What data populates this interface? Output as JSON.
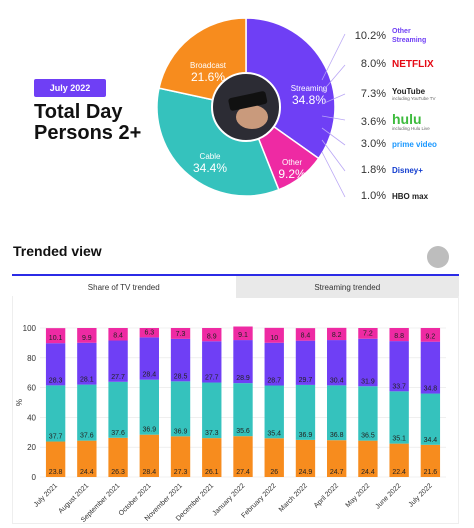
{
  "header": {
    "badge": "July 2022",
    "title_line1": "Total Day",
    "title_line2": "Persons 2+"
  },
  "pie": {
    "slices": [
      {
        "name": "Streaming",
        "value": 34.8,
        "value_label": "34.8%",
        "color": "#6f3ff5"
      },
      {
        "name": "Other",
        "value": 9.2,
        "value_label": "9.2%",
        "color": "#ee2aa3"
      },
      {
        "name": "Cable",
        "value": 34.4,
        "value_label": "34.4%",
        "color": "#35c2bd"
      },
      {
        "name": "Broadcast",
        "value": 21.6,
        "value_label": "21.6%",
        "color": "#f78c1e"
      }
    ]
  },
  "streaming_legend": [
    {
      "pct": "10.2%",
      "label": "Other Streaming",
      "icon": "other-streaming-logo",
      "color": "#6f3ff5"
    },
    {
      "pct": "8.0%",
      "label": "NETFLIX",
      "icon": "netflix-logo",
      "color": "#e50914"
    },
    {
      "pct": "7.3%",
      "label": "YouTube",
      "sublabel": "including YouTube TV",
      "icon": "youtube-logo",
      "color": "#222222"
    },
    {
      "pct": "3.6%",
      "label": "hulu",
      "sublabel": "including Hulu Live",
      "icon": "hulu-logo",
      "color": "#3dbb3d"
    },
    {
      "pct": "3.0%",
      "label": "prime video",
      "icon": "prime-video-logo",
      "color": "#1a98ff"
    },
    {
      "pct": "1.8%",
      "label": "Disney+",
      "icon": "disney-plus-logo",
      "color": "#113ccf"
    },
    {
      "pct": "1.0%",
      "label": "HBO max",
      "icon": "hbo-max-logo",
      "color": "#222222"
    }
  ],
  "trend": {
    "section_title": "Trended view",
    "tabs": [
      {
        "label": "Share of TV trended",
        "active": true
      },
      {
        "label": "Streaming trended",
        "active": false
      }
    ]
  },
  "chart_data": {
    "type": "bar",
    "stacked": true,
    "ylabel": "%",
    "ylim": [
      0,
      100
    ],
    "yticks": [
      0,
      20,
      40,
      60,
      80,
      100
    ],
    "categories": [
      "July 2021",
      "August 2021",
      "September 2021",
      "October 2021",
      "November 2021",
      "December 2021",
      "January 2022",
      "February 2022",
      "March 2022",
      "April 2022",
      "May 2022",
      "June 2022",
      "July 2022"
    ],
    "series": [
      {
        "key": "broadcast",
        "color": "#f78c1e",
        "values": [
          23.8,
          24.4,
          26.3,
          28.4,
          27.3,
          26.1,
          27.4,
          26,
          24.9,
          24.7,
          24.4,
          22.4,
          21.6
        ],
        "labels": [
          "23.8",
          "24.4",
          "26.3",
          "28.4",
          "27.3",
          "26.1",
          "27.4",
          "26",
          "24.9",
          "24.7",
          "24.4",
          "22.4",
          "21.6"
        ]
      },
      {
        "key": "cable",
        "color": "#35c2bd",
        "values": [
          37.7,
          37.6,
          37.6,
          36.9,
          36.9,
          37.3,
          35.6,
          35.4,
          36.9,
          36.8,
          36.5,
          35.1,
          34.4
        ],
        "labels": [
          "37.7",
          "37.6",
          "37.6",
          "36.9",
          "36.9",
          "37.3",
          "35.6",
          "35.4",
          "36.9",
          "36.8",
          "36.5",
          "35.1",
          "34.4"
        ]
      },
      {
        "key": "streaming",
        "color": "#6f3ff5",
        "values": [
          28.3,
          28.1,
          27.7,
          28.4,
          28.5,
          27.7,
          28.9,
          28.7,
          29.7,
          30.4,
          31.9,
          33.7,
          34.8
        ],
        "labels": [
          "28.3",
          "28.1",
          "27.7",
          "28.4",
          "28.5",
          "27.7",
          "28.9",
          "28.7",
          "29.7",
          "30.4",
          "31.9",
          "33.7",
          "34.8"
        ]
      },
      {
        "key": "other",
        "color": "#ee2aa3",
        "values": [
          10.1,
          9.9,
          8.4,
          6.3,
          7.3,
          8.9,
          9.1,
          10,
          8.4,
          8.2,
          7.2,
          8.8,
          9.2
        ],
        "labels": [
          "10.1",
          "9.9",
          "8.4",
          "6.3",
          "7.3",
          "8.9",
          "9.1",
          "10",
          "8.4",
          "8.2",
          "7.2",
          "8.8",
          "9.2"
        ]
      }
    ]
  }
}
